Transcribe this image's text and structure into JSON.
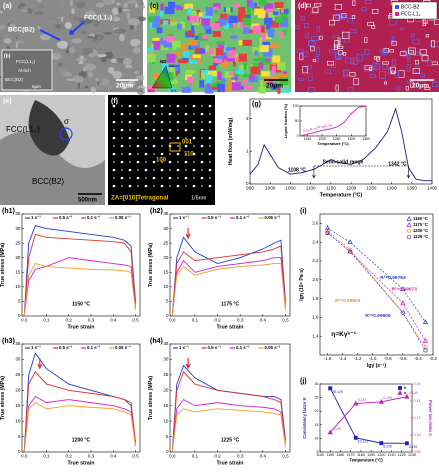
{
  "panels": {
    "a": [
      "(a)",
      "FCC(L1₂)",
      "BCC(B2)",
      "20μm"
    ],
    "b": [
      "(b)",
      "FCC(L1₂)",
      "Al-rich",
      "BCC(B2)",
      "5μm"
    ],
    "c": [
      "(c)",
      "20μm",
      "ND",
      "001",
      "101",
      "111"
    ],
    "d": [
      "(d)",
      "BCC-B2",
      "FCC-L1₂",
      "20μm"
    ],
    "e": [
      "(e)",
      "FCC(L1₂)",
      "σ",
      "BCC(B2)",
      "500nm"
    ],
    "f": [
      "(f)",
      "001",
      "110",
      "100",
      "ZA=[010]Tetragonal",
      "1/5nm"
    ]
  },
  "chart_data": [
    {
      "type": "line",
      "title": "(g)",
      "xlabel": "Temperature (°C)",
      "ylabel": "Heat flow (mW/mg)",
      "x": [
        950,
        970,
        985,
        1000,
        1020,
        1050,
        1080,
        1108,
        1130,
        1150,
        1170,
        1200,
        1230,
        1260,
        1290,
        1310,
        1325,
        1342,
        1360,
        1380,
        1400
      ],
      "series": [
        {
          "color": "#1a1a8c",
          "values": [
            0.3,
            0.6,
            1.2,
            0.9,
            0.5,
            0.3,
            0.35,
            0.45,
            0.6,
            0.75,
            0.65,
            0.6,
            0.75,
            1.1,
            1.6,
            2.3,
            1.6,
            0.5,
            0.15,
            0.1,
            0.1
          ]
        }
      ],
      "xlim": [
        950,
        1400
      ],
      "xticks": [
        950,
        1000,
        1050,
        1100,
        1150,
        1200,
        1250,
        1300,
        1350,
        1400
      ],
      "ylim": [
        0,
        2.6
      ],
      "yticks": [
        0,
        1,
        2
      ],
      "annotations": [
        "1108 °C",
        "Semi-solid range",
        "1342 °C"
      ]
    },
    {
      "type": "line",
      "xlabel": "Temperature (°C)",
      "ylabel": "Liquid fraction (%)",
      "x": [
        1125,
        1150,
        1175,
        1200,
        1225,
        1250,
        1275,
        1300,
        1325,
        1350
      ],
      "series": [
        {
          "color": "#d020c0",
          "values": [
            0,
            5.6,
            11.7,
            18.4,
            22.9,
            30,
            45,
            75,
            95,
            100
          ],
          "value_labels": [
            null,
            "5.6%",
            "11.7%",
            "18.4%",
            "22.9%",
            null,
            null,
            null,
            null,
            null
          ]
        }
      ],
      "xlim": [
        1125,
        1350
      ],
      "xticks": [
        1150,
        1200,
        1250,
        1300,
        1350
      ],
      "ylim": [
        0,
        100
      ],
      "yticks": [
        0,
        50,
        100
      ]
    },
    {
      "type": "line",
      "title": "(h1)",
      "xlabel": "True strain",
      "ylabel": "True stress (MPa)",
      "x": [
        0,
        0.02,
        0.05,
        0.1,
        0.2,
        0.3,
        0.4,
        0.45,
        0.48,
        0.5
      ],
      "series": [
        {
          "name": "1 s⁻¹",
          "color": "#1f3fd0",
          "values": [
            0,
            25,
            31,
            30,
            29,
            28,
            27,
            26,
            24,
            5
          ]
        },
        {
          "name": "0.5 s⁻¹",
          "color": "#e03030",
          "values": [
            0,
            20,
            28,
            27,
            26.5,
            26,
            25.5,
            25,
            22,
            4
          ]
        },
        {
          "name": "0.1 s⁻¹",
          "color": "#d020d0",
          "values": [
            0,
            12,
            16,
            17,
            20,
            19,
            18,
            17.5,
            17,
            3
          ]
        },
        {
          "name": "0.05 s⁻¹",
          "color": "#f0a020",
          "values": [
            0,
            14,
            18,
            17,
            16.5,
            16,
            15.8,
            15.5,
            15,
            2
          ]
        }
      ],
      "xlim": [
        -0.01,
        0.52
      ],
      "xticks": [
        {
          "value": 0,
          "label": "0.0"
        },
        0.1,
        0.2,
        0.3,
        0.4,
        0.5
      ],
      "ylim": [
        0,
        35
      ],
      "yticks": [
        0,
        5,
        10,
        15,
        20,
        25,
        30,
        35
      ],
      "annotations": [
        "1150 °C"
      ]
    },
    {
      "type": "line",
      "title": "(h2)",
      "xlabel": "True strain",
      "ylabel": "True stress (MPa)",
      "x": [
        0,
        0.02,
        0.05,
        0.1,
        0.2,
        0.3,
        0.4,
        0.45,
        0.48,
        0.5
      ],
      "series": [
        {
          "name": "1 s⁻¹",
          "color": "#1f3fd0",
          "values": [
            0,
            20,
            27,
            22,
            18,
            20,
            23,
            25,
            26,
            5
          ]
        },
        {
          "name": "0.5 s⁻¹",
          "color": "#e03030",
          "values": [
            0,
            18,
            22,
            19,
            20,
            21,
            22,
            23,
            24,
            4
          ]
        },
        {
          "name": "0.1 s⁻¹",
          "color": "#d020d0",
          "values": [
            0,
            15,
            19,
            15,
            17,
            18,
            19,
            20,
            20,
            3
          ]
        },
        {
          "name": "0.05 s⁻¹",
          "color": "#f0a020",
          "values": [
            0,
            14,
            17,
            14,
            16,
            17,
            17.5,
            18,
            18,
            2
          ]
        }
      ],
      "xlim": [
        -0.01,
        0.52
      ],
      "xticks": [
        {
          "value": 0,
          "label": "0.0"
        },
        0.1,
        0.2,
        0.3,
        0.4,
        0.5
      ],
      "ylim": [
        0,
        35
      ],
      "yticks": [
        0,
        5,
        10,
        15,
        20,
        25,
        30,
        35
      ],
      "annotations": [
        "1175 °C"
      ]
    },
    {
      "type": "line",
      "title": "(h3)",
      "xlabel": "True strain",
      "ylabel": "True stress (MPa)",
      "x": [
        0,
        0.02,
        0.05,
        0.1,
        0.2,
        0.3,
        0.4,
        0.45,
        0.48,
        0.5
      ],
      "series": [
        {
          "name": "1 s⁻¹",
          "color": "#1f3fd0",
          "values": [
            0,
            25,
            32,
            27,
            22,
            20,
            18,
            17,
            15,
            3
          ]
        },
        {
          "name": "0.5 s⁻¹",
          "color": "#e03030",
          "values": [
            0,
            22,
            26,
            22,
            20,
            19,
            18,
            17,
            16,
            3
          ]
        },
        {
          "name": "0.1 s⁻¹",
          "color": "#d020d0",
          "values": [
            0,
            15,
            18,
            16,
            17,
            16,
            15,
            14,
            13,
            2
          ]
        },
        {
          "name": "0.05 s⁻¹",
          "color": "#f0a020",
          "values": [
            0,
            14,
            16,
            14,
            15,
            14.5,
            14,
            13,
            12,
            2
          ]
        }
      ],
      "xlim": [
        -0.01,
        0.52
      ],
      "xticks": [
        {
          "value": 0,
          "label": "0.0"
        },
        0.1,
        0.2,
        0.3,
        0.4,
        0.5
      ],
      "ylim": [
        0,
        35
      ],
      "yticks": [
        0,
        5,
        10,
        15,
        20,
        25,
        30,
        35
      ],
      "annotations": [
        "1200 °C"
      ]
    },
    {
      "type": "line",
      "title": "(h4)",
      "xlabel": "True strain",
      "ylabel": "True stress (MPa)",
      "x": [
        0,
        0.02,
        0.05,
        0.1,
        0.2,
        0.3,
        0.4,
        0.45,
        0.48,
        0.5
      ],
      "series": [
        {
          "name": "1 s⁻¹",
          "color": "#1f3fd0",
          "values": [
            0,
            22,
            28,
            24,
            20,
            19,
            18,
            18,
            17,
            4
          ]
        },
        {
          "name": "0.5 s⁻¹",
          "color": "#e03030",
          "values": [
            0,
            20,
            26,
            22,
            20,
            19,
            18,
            17,
            16,
            3
          ]
        },
        {
          "name": "0.1 s⁻¹",
          "color": "#d020d0",
          "values": [
            0,
            14,
            17,
            15,
            16,
            15,
            14.5,
            14,
            13,
            2
          ]
        },
        {
          "name": "0.05 s⁻¹",
          "color": "#f0a020",
          "values": [
            0,
            12,
            14,
            13,
            14,
            13.5,
            13,
            12.5,
            12,
            2
          ]
        }
      ],
      "xlim": [
        -0.01,
        0.52
      ],
      "xticks": [
        {
          "value": 0,
          "label": "0.0"
        },
        0.1,
        0.2,
        0.3,
        0.4,
        0.5
      ],
      "ylim": [
        0,
        35
      ],
      "yticks": [
        0,
        5,
        10,
        15,
        20,
        25,
        30,
        35
      ],
      "annotations": [
        "1225 °C"
      ]
    },
    {
      "type": "scatter",
      "title": "(i)",
      "xlabel": "lgγ̇ (s⁻¹)",
      "ylabel": "lgη (10⁸ Pa·s)",
      "x": [
        -1.6,
        -1.3,
        -0.6,
        -0.3
      ],
      "series": [
        {
          "name": "1150 °C",
          "color": "#2040c0",
          "marker": "triangle",
          "values": [
            2.55,
            2.4,
            1.9,
            1.55
          ]
        },
        {
          "name": "1175 °C",
          "color": "#d020a0",
          "marker": "triangle",
          "values": [
            2.5,
            2.3,
            1.75,
            1.35
          ]
        },
        {
          "name": "1200 °C",
          "color": "#f09020",
          "marker": "circle",
          "values": [
            2.52,
            2.32,
            1.65,
            1.28
          ]
        },
        {
          "name": "1225 °C",
          "color": "#5030d0",
          "marker": "circle",
          "values": [
            2.5,
            2.3,
            1.65,
            1.25
          ]
        }
      ],
      "xlim": [
        -1.7,
        -0.2
      ],
      "xticks": [
        -1.6,
        -1.4,
        -1.2,
        {
          "value": -1,
          "label": "-1.0"
        },
        -0.8,
        -0.6,
        -0.4,
        -0.2
      ],
      "ylim": [
        1.2,
        2.7
      ],
      "yticks": [
        1.4,
        1.6,
        1.8,
        {
          "value": 2,
          "label": "2.0"
        },
        2.2,
        2.4,
        2.6
      ],
      "annotations": [
        "R²=0.99783",
        "R²=0.99973",
        "R²=0.99904",
        "R²=0.99906",
        "η=Kγ̇ⁿ⁻¹"
      ]
    },
    {
      "type": "line",
      "title": "(j)",
      "xlabel": "Temperature (°C)",
      "ylabel": "Consistency factor K",
      "y2label": "Power law index n",
      "x": [
        1150,
        1175,
        1200,
        1225
      ],
      "series": [
        {
          "name": "K",
          "color": "#2020c0",
          "marker": "square",
          "values": [
            28.429,
            10.221,
            8.265,
            8.191
          ]
        },
        {
          "name": "n",
          "color": "#c020c0",
          "marker": "triangle",
          "axis": "y2",
          "values": [
            0.103,
            0.137,
            0.139,
            0.145
          ]
        }
      ],
      "xlim": [
        1140,
        1230
      ],
      "xticks": [
        1140,
        1150,
        1160,
        1170,
        1180,
        1190,
        1200,
        1210,
        1220,
        1230
      ],
      "ylim": [
        5,
        30
      ],
      "yticks": [
        5,
        10,
        15,
        20,
        25,
        30
      ],
      "y2lim": [
        0.08,
        0.16
      ],
      "y2ticks": [
        0.08,
        {
          "value": 0.1,
          "label": "0.10"
        },
        0.12,
        0.14,
        0.16
      ]
    }
  ]
}
